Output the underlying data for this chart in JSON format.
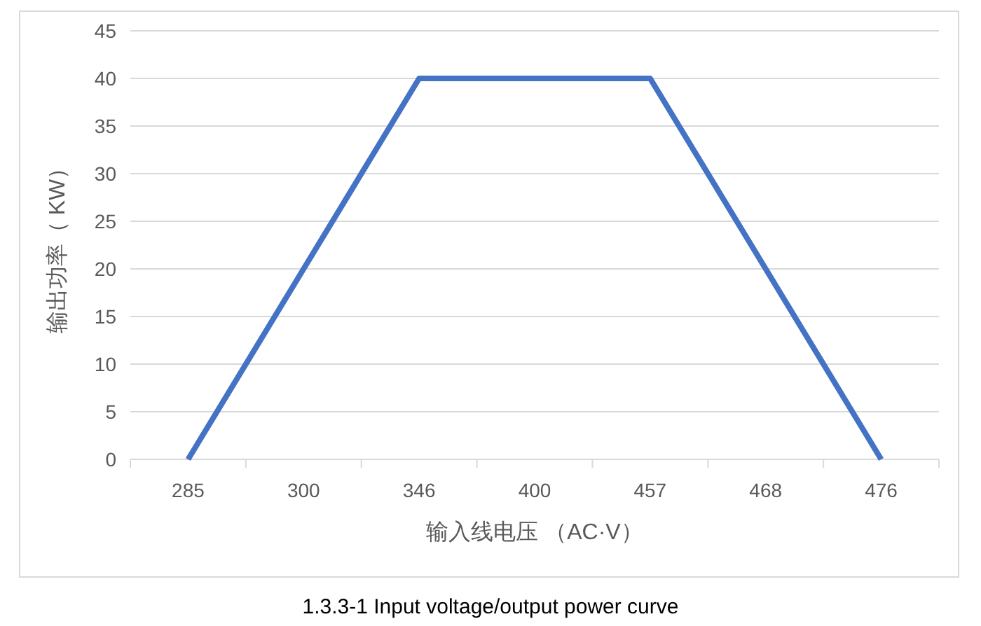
{
  "chart_data": {
    "type": "line",
    "xlabel": "输入线电压 （AC·V）",
    "ylabel": "输出功率（ KW）",
    "categories": [
      "285",
      "300",
      "346",
      "400",
      "457",
      "468",
      "476"
    ],
    "series": [
      {
        "color": "#4472c4",
        "values": [
          0,
          20,
          40,
          40,
          40,
          20,
          0
        ]
      }
    ],
    "ylim": [
      0,
      45
    ],
    "yticks": [
      0,
      5,
      10,
      15,
      20,
      25,
      30,
      35,
      40,
      45
    ],
    "grid": "y",
    "annotations": [
      "1.3.3-1 Input voltage/output power curve"
    ]
  }
}
